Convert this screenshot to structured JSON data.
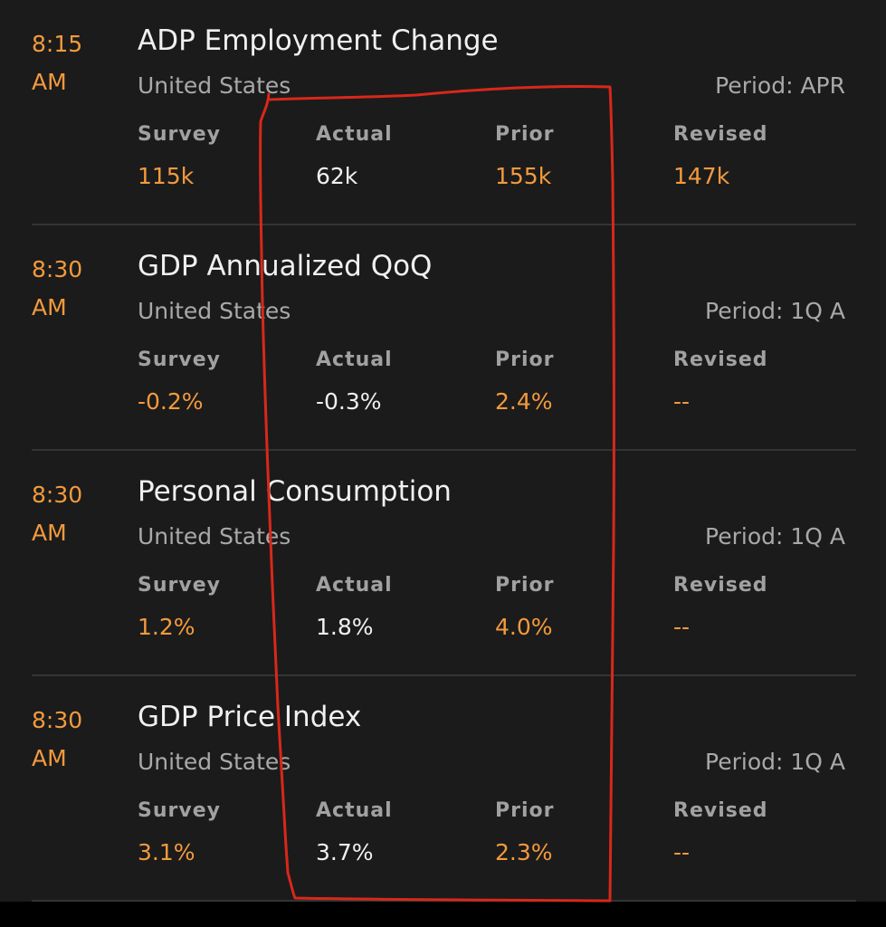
{
  "events": [
    {
      "time": "8:15",
      "ampm": "AM",
      "title": "ADP Employment Change",
      "country": "United States",
      "period": "Period: APR",
      "labels": {
        "survey": "Survey",
        "actual": "Actual",
        "prior": "Prior",
        "revised": "Revised"
      },
      "values": {
        "survey": "115k",
        "actual": "62k",
        "prior": "155k",
        "revised": "147k"
      }
    },
    {
      "time": "8:30",
      "ampm": "AM",
      "title": "GDP Annualized QoQ",
      "country": "United States",
      "period": "Period: 1Q A",
      "labels": {
        "survey": "Survey",
        "actual": "Actual",
        "prior": "Prior",
        "revised": "Revised"
      },
      "values": {
        "survey": "-0.2%",
        "actual": "-0.3%",
        "prior": "2.4%",
        "revised": "--"
      }
    },
    {
      "time": "8:30",
      "ampm": "AM",
      "title": "Personal Consumption",
      "country": "United States",
      "period": "Period: 1Q A",
      "labels": {
        "survey": "Survey",
        "actual": "Actual",
        "prior": "Prior",
        "revised": "Revised"
      },
      "values": {
        "survey": "1.2%",
        "actual": "1.8%",
        "prior": "4.0%",
        "revised": "--"
      }
    },
    {
      "time": "8:30",
      "ampm": "AM",
      "title": "GDP Price Index",
      "country": "United States",
      "period": "Period: 1Q A",
      "labels": {
        "survey": "Survey",
        "actual": "Actual",
        "prior": "Prior",
        "revised": "Revised"
      },
      "values": {
        "survey": "3.1%",
        "actual": "3.7%",
        "prior": "2.3%",
        "revised": "--"
      }
    }
  ],
  "colors": {
    "background": "#1b1b1b",
    "accent": "#f39a3d",
    "primary_text": "#f0f0f0",
    "secondary_text": "#a9a9a9",
    "highlight_annotation": "#d8281a"
  }
}
